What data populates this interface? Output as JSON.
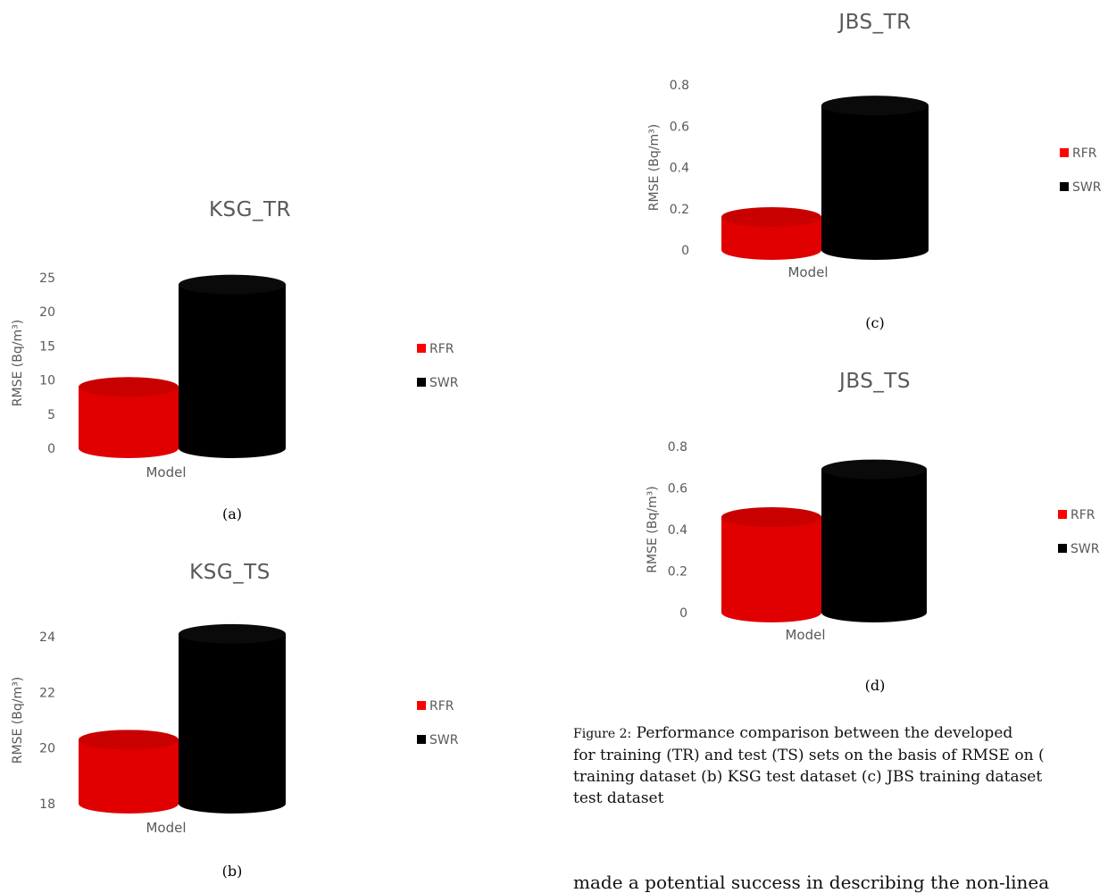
{
  "chart_data": [
    {
      "type": "bar",
      "title": "KSG_TR",
      "categories": [
        "Model"
      ],
      "xlabel": "Model",
      "ylabel": "RMSE (Bq/m³)",
      "ylim": [
        0,
        25
      ],
      "yticks": [
        "25",
        "20",
        "15",
        "10",
        "5",
        "0"
      ],
      "series": [
        {
          "name": "RFR",
          "values": [
            9
          ]
        },
        {
          "name": "SWR",
          "values": [
            24
          ]
        }
      ],
      "legend": "right",
      "caption": "(a)"
    },
    {
      "type": "bar",
      "title": "KSG_TS",
      "categories": [
        "Model"
      ],
      "xlabel": "Model",
      "ylabel": "RMSE (Bq/m³)",
      "ylim": [
        18,
        24
      ],
      "yticks": [
        "24",
        "22",
        "20",
        "18"
      ],
      "series": [
        {
          "name": "RFR",
          "values": [
            20.3
          ]
        },
        {
          "name": "SWR",
          "values": [
            24.1
          ]
        }
      ],
      "legend": "right",
      "caption": "(b)"
    },
    {
      "type": "bar",
      "title": "JBS_TR",
      "categories": [
        "Model"
      ],
      "xlabel": "Model",
      "ylabel": "RMSE (Bq/m³)",
      "ylim": [
        0,
        0.8
      ],
      "yticks": [
        "0.8",
        "0.6",
        "0.4",
        "0.2",
        "0"
      ],
      "series": [
        {
          "name": "RFR",
          "values": [
            0.16
          ]
        },
        {
          "name": "SWR",
          "values": [
            0.7
          ]
        }
      ],
      "legend": "right",
      "caption": "(c)"
    },
    {
      "type": "bar",
      "title": "JBS_TS",
      "categories": [
        "Model"
      ],
      "xlabel": "Model",
      "ylabel": "RMSE (Bq/m³)",
      "ylim": [
        0,
        0.8
      ],
      "yticks": [
        "0.8",
        "0.6",
        "0.4",
        "0.2",
        "0"
      ],
      "series": [
        {
          "name": "RFR",
          "values": [
            0.46
          ]
        },
        {
          "name": "SWR",
          "values": [
            0.69
          ]
        }
      ],
      "legend": "right",
      "caption": "(d)"
    }
  ],
  "colors": {
    "RFR": "#ff0000",
    "SWR": "#000000"
  },
  "figure_caption": {
    "label": "Figure 2:",
    "lines": [
      "Performance comparison between the developed",
      "for training (TR) and test (TS) sets on the basis of RMSE on (",
      "training dataset (b) KSG test dataset (c) JBS training dataset",
      "test dataset"
    ]
  },
  "body_text": "made a potential success in describing the non-linea"
}
